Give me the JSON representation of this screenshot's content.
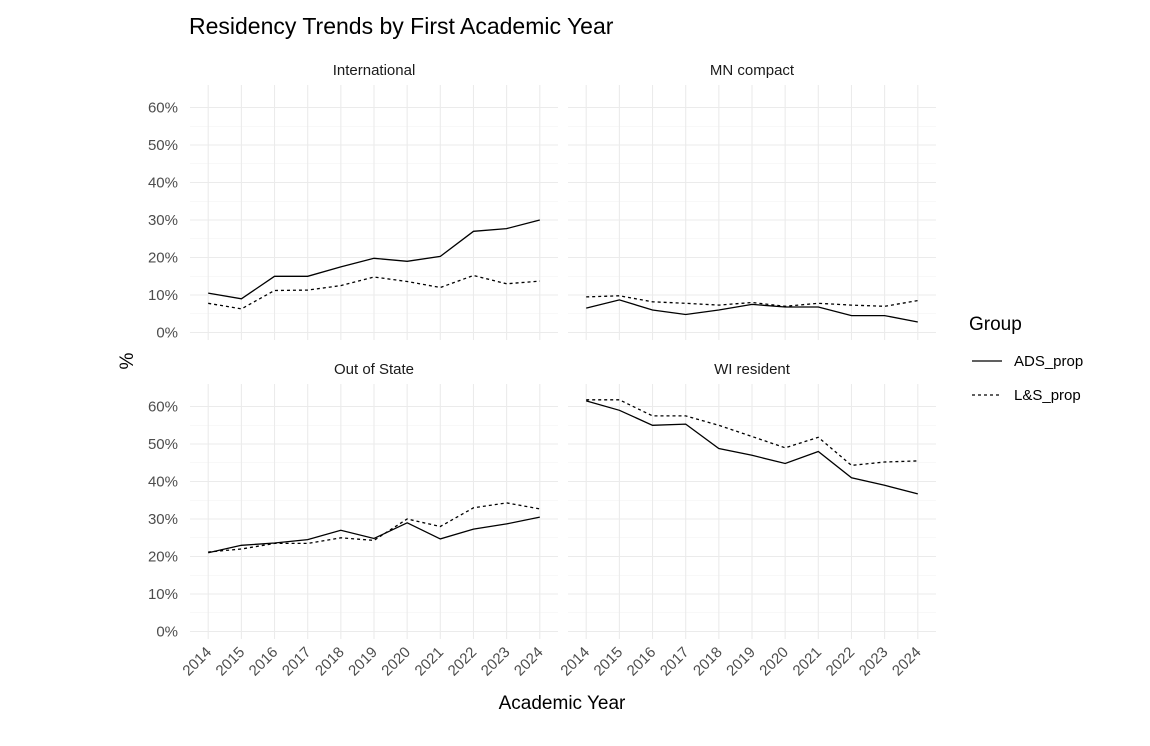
{
  "chart_data": {
    "type": "line",
    "title": "Residency Trends by First Academic Year",
    "xlabel": "Academic Year",
    "ylabel": "%",
    "x": [
      2014,
      2015,
      2016,
      2017,
      2018,
      2019,
      2020,
      2021,
      2022,
      2023,
      2024
    ],
    "x_tick_labels": [
      "2014",
      "2015",
      "2016",
      "2017",
      "2018",
      "2019",
      "2020",
      "2021",
      "2022",
      "2023",
      "2024"
    ],
    "ylim": [
      -2,
      66
    ],
    "y_ticks": [
      0,
      10,
      20,
      30,
      40,
      50,
      60
    ],
    "y_tick_labels": [
      "0%",
      "10%",
      "20%",
      "30%",
      "40%",
      "50%",
      "60%"
    ],
    "grid": true,
    "legend": {
      "title": "Group",
      "position": "right",
      "entries": [
        {
          "name": "ADS_prop",
          "linetype": "solid"
        },
        {
          "name": "L&S_prop",
          "linetype": "dotted"
        }
      ]
    },
    "series_colors": {
      "ADS_prop": "#000000",
      "L&S_prop": "#000000"
    },
    "facets": [
      {
        "label": "International",
        "series": [
          {
            "name": "ADS_prop",
            "values": [
              10.5,
              9.0,
              15.0,
              15.0,
              17.5,
              19.8,
              19.0,
              20.3,
              27.0,
              27.7,
              30.0
            ]
          },
          {
            "name": "L&S_prop",
            "values": [
              7.8,
              6.3,
              11.2,
              11.3,
              12.5,
              14.8,
              13.6,
              12.0,
              15.2,
              13.0,
              13.7
            ]
          }
        ]
      },
      {
        "label": "MN compact",
        "series": [
          {
            "name": "ADS_prop",
            "values": [
              6.5,
              8.7,
              6.0,
              4.8,
              6.0,
              7.5,
              6.8,
              6.8,
              4.5,
              4.5,
              2.8
            ]
          },
          {
            "name": "L&S_prop",
            "values": [
              9.5,
              9.8,
              8.2,
              7.8,
              7.3,
              8.0,
              7.0,
              7.8,
              7.3,
              7.0,
              8.5
            ]
          }
        ]
      },
      {
        "label": "Out of State",
        "series": [
          {
            "name": "ADS_prop",
            "values": [
              21.0,
              23.0,
              23.6,
              24.5,
              27.0,
              24.8,
              29.0,
              24.7,
              27.3,
              28.7,
              30.5
            ]
          },
          {
            "name": "L&S_prop",
            "values": [
              21.2,
              22.0,
              23.5,
              23.5,
              25.0,
              24.3,
              30.0,
              28.0,
              33.0,
              34.3,
              32.7
            ]
          }
        ]
      },
      {
        "label": "WI resident",
        "series": [
          {
            "name": "ADS_prop",
            "values": [
              61.5,
              59.0,
              55.0,
              55.3,
              48.8,
              47.0,
              44.8,
              48.0,
              41.0,
              39.0,
              36.7
            ]
          },
          {
            "name": "L&S_prop",
            "values": [
              61.8,
              61.8,
              57.5,
              57.5,
              55.0,
              52.0,
              49.0,
              51.8,
              44.3,
              45.2,
              45.5
            ]
          }
        ]
      }
    ]
  }
}
